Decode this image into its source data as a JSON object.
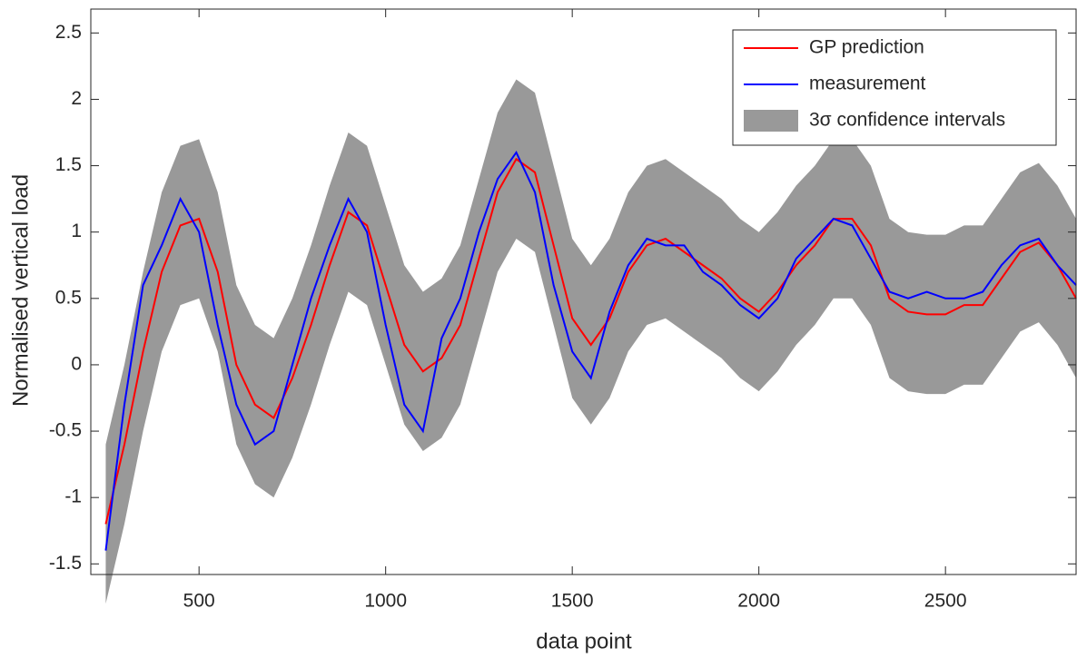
{
  "chart_data": {
    "type": "line",
    "xlabel": "data point",
    "ylabel": "Normalised vertical load",
    "x": [
      250,
      300,
      350,
      400,
      450,
      500,
      550,
      600,
      650,
      700,
      750,
      800,
      850,
      900,
      950,
      1000,
      1050,
      1100,
      1150,
      1200,
      1250,
      1300,
      1350,
      1400,
      1450,
      1500,
      1550,
      1600,
      1650,
      1700,
      1750,
      1800,
      1850,
      1900,
      1950,
      2000,
      2050,
      2100,
      2150,
      2200,
      2250,
      2300,
      2350,
      2400,
      2450,
      2500,
      2550,
      2600,
      2650,
      2700,
      2750,
      2800,
      2850
    ],
    "band": {
      "name": "3σ confidence intervals",
      "color": "#999999",
      "upper": [
        -0.6,
        0.0,
        0.7,
        1.3,
        1.65,
        1.7,
        1.3,
        0.6,
        0.3,
        0.2,
        0.5,
        0.9,
        1.35,
        1.75,
        1.65,
        1.2,
        0.75,
        0.55,
        0.65,
        0.9,
        1.4,
        1.9,
        2.15,
        2.05,
        1.5,
        0.95,
        0.75,
        0.95,
        1.3,
        1.5,
        1.55,
        1.45,
        1.35,
        1.25,
        1.1,
        1.0,
        1.15,
        1.35,
        1.5,
        1.7,
        1.7,
        1.5,
        1.1,
        1.0,
        0.98,
        0.98,
        1.05,
        1.05,
        1.25,
        1.45,
        1.52,
        1.35,
        1.1
      ],
      "lower": [
        -1.8,
        -1.2,
        -0.5,
        0.1,
        0.45,
        0.5,
        0.1,
        -0.6,
        -0.9,
        -1.0,
        -0.7,
        -0.3,
        0.15,
        0.55,
        0.45,
        0.0,
        -0.45,
        -0.65,
        -0.55,
        -0.3,
        0.2,
        0.7,
        0.95,
        0.85,
        0.3,
        -0.25,
        -0.45,
        -0.25,
        0.1,
        0.3,
        0.35,
        0.25,
        0.15,
        0.05,
        -0.1,
        -0.2,
        -0.05,
        0.15,
        0.3,
        0.5,
        0.5,
        0.3,
        -0.1,
        -0.2,
        -0.22,
        -0.22,
        -0.15,
        -0.15,
        0.05,
        0.25,
        0.32,
        0.15,
        -0.1
      ]
    },
    "series": [
      {
        "name": "GP prediction",
        "color": "#ff0000",
        "values": [
          -1.2,
          -0.6,
          0.1,
          0.7,
          1.05,
          1.1,
          0.7,
          0.0,
          -0.3,
          -0.4,
          -0.1,
          0.3,
          0.75,
          1.15,
          1.05,
          0.6,
          0.15,
          -0.05,
          0.05,
          0.3,
          0.8,
          1.3,
          1.55,
          1.45,
          0.9,
          0.35,
          0.15,
          0.35,
          0.7,
          0.9,
          0.95,
          0.85,
          0.75,
          0.65,
          0.5,
          0.4,
          0.55,
          0.75,
          0.9,
          1.1,
          1.1,
          0.9,
          0.5,
          0.4,
          0.38,
          0.38,
          0.45,
          0.45,
          0.65,
          0.85,
          0.92,
          0.75,
          0.5
        ]
      },
      {
        "name": "measurement",
        "color": "#0000ff",
        "values": [
          -1.4,
          -0.3,
          0.6,
          0.9,
          1.25,
          1.0,
          0.3,
          -0.3,
          -0.6,
          -0.5,
          0.0,
          0.5,
          0.9,
          1.25,
          1.0,
          0.3,
          -0.3,
          -0.5,
          0.2,
          0.5,
          1.0,
          1.4,
          1.6,
          1.3,
          0.6,
          0.1,
          -0.1,
          0.4,
          0.75,
          0.95,
          0.9,
          0.9,
          0.7,
          0.6,
          0.45,
          0.35,
          0.5,
          0.8,
          0.95,
          1.1,
          1.05,
          0.8,
          0.55,
          0.5,
          0.55,
          0.5,
          0.5,
          0.55,
          0.75,
          0.9,
          0.95,
          0.75,
          0.6
        ]
      }
    ],
    "xlim": [
      210,
      2850
    ],
    "ylim": [
      -1.58,
      2.68
    ],
    "xticks": [
      500,
      1000,
      1500,
      2000,
      2500
    ],
    "yticks": [
      -1.5,
      -1,
      -0.5,
      0,
      0.5,
      1,
      1.5,
      2,
      2.5
    ],
    "legend": "upper right"
  }
}
